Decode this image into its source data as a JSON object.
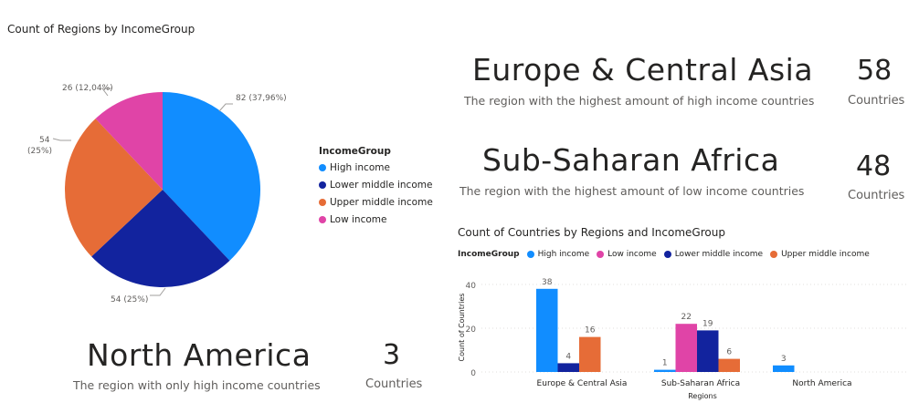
{
  "pie": {
    "title": "Count of Regions by IncomeGroup",
    "legend_title": "IncomeGroup",
    "legend": [
      {
        "label": "High income",
        "color": "#118DFF"
      },
      {
        "label": "Lower middle income",
        "color": "#12239E"
      },
      {
        "label": "Upper middle income",
        "color": "#E66C37"
      },
      {
        "label": "Low income",
        "color": "#E044A7"
      }
    ],
    "labels": [
      "82 (37,96%)",
      "54 (25%)",
      "54",
      "(25%)",
      "26 (12,04%)"
    ]
  },
  "cards": [
    {
      "region": "Europe & Central Asia",
      "desc": "The region with the highest amount of high income countries",
      "count": "58",
      "unit": "Countries"
    },
    {
      "region": "Sub-Saharan Africa",
      "desc": "The region with the highest amount of low income countries",
      "count": "48",
      "unit": "Countries"
    },
    {
      "region": "North America",
      "desc": "The region with only high income countries",
      "count": "3",
      "unit": "Countries"
    }
  ],
  "bar": {
    "title": "Count of Countries by Regions and IncomeGroup",
    "legend_title": "IncomeGroup",
    "legend": [
      {
        "label": "High income",
        "color": "#118DFF"
      },
      {
        "label": "Low income",
        "color": "#E044A7"
      },
      {
        "label": "Lower middle income",
        "color": "#12239E"
      },
      {
        "label": "Upper middle income",
        "color": "#E66C37"
      }
    ],
    "xlabel": "Regions",
    "ylabel": "Count of Countries",
    "ticks": [
      "40",
      "20",
      "0"
    ]
  },
  "chart_data": [
    {
      "type": "pie",
      "title": "Count of Regions by IncomeGroup",
      "categories": [
        "High income",
        "Lower middle income",
        "Upper middle income",
        "Low income"
      ],
      "values": [
        82,
        54,
        54,
        26
      ],
      "percent": [
        37.96,
        25,
        25,
        12.04
      ],
      "colors": [
        "#118DFF",
        "#12239E",
        "#E66C37",
        "#E044A7"
      ],
      "legend_title": "IncomeGroup"
    },
    {
      "type": "bar",
      "title": "Count of Countries by Regions and IncomeGroup",
      "categories": [
        "Europe & Central Asia",
        "Sub-Saharan Africa",
        "North America"
      ],
      "series": [
        {
          "name": "High income",
          "color": "#118DFF",
          "values": [
            38,
            1,
            3
          ]
        },
        {
          "name": "Low income",
          "color": "#E044A7",
          "values": [
            null,
            22,
            null
          ]
        },
        {
          "name": "Lower middle income",
          "color": "#12239E",
          "values": [
            4,
            19,
            null
          ]
        },
        {
          "name": "Upper middle income",
          "color": "#E66C37",
          "values": [
            16,
            6,
            null
          ]
        }
      ],
      "xlabel": "Regions",
      "ylabel": "Count of Countries",
      "ylim": [
        0,
        40
      ],
      "yticks": [
        0,
        20,
        40
      ],
      "legend_title": "IncomeGroup"
    }
  ]
}
